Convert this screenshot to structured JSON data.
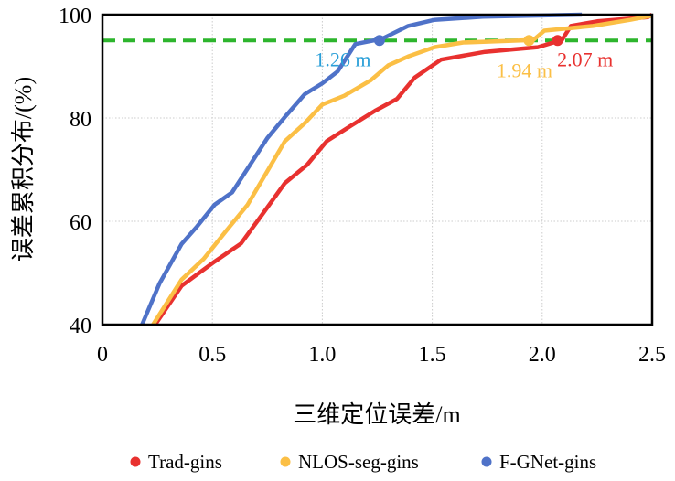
{
  "chart_data": {
    "type": "line",
    "title": "",
    "xlabel": "三维定位误差/m",
    "ylabel": "误差累积分布/(%)",
    "xlim": [
      0,
      2.5
    ],
    "ylim": [
      40,
      100
    ],
    "xticks": [
      "0",
      "0.5",
      "1.0",
      "1.5",
      "2.0",
      "2.5"
    ],
    "xtick_values": [
      0,
      0.5,
      1.0,
      1.5,
      2.0,
      2.5
    ],
    "yticks": [
      "40",
      "60",
      "80",
      "100"
    ],
    "ytick_values": [
      40,
      60,
      80,
      100
    ],
    "grid": true,
    "legend_position": "bottom",
    "threshold": {
      "y": 95,
      "color": "#2db52d",
      "style": "dashed"
    },
    "series": [
      {
        "name": "Trad-gins",
        "color": "#e8312f",
        "x": [
          0.24,
          0.36,
          0.51,
          0.63,
          0.73,
          0.83,
          0.93,
          1.02,
          1.13,
          1.24,
          1.34,
          1.42,
          1.54,
          1.74,
          1.98,
          2.09,
          2.13,
          2.25,
          2.48,
          2.5
        ],
        "y": [
          40,
          47.5,
          52.2,
          55.7,
          61.5,
          67.4,
          70.9,
          75.5,
          78.5,
          81.4,
          83.7,
          87.8,
          91.3,
          92.8,
          93.7,
          95.1,
          97.8,
          98.7,
          99.5,
          100
        ],
        "marker": {
          "x": 2.07,
          "y": 95,
          "label": "2.07 m"
        }
      },
      {
        "name": "NLOS-seg-gins",
        "color": "#fbbf45",
        "x": [
          0.23,
          0.36,
          0.46,
          0.56,
          0.66,
          0.75,
          0.83,
          0.92,
          1.0,
          1.1,
          1.22,
          1.3,
          1.39,
          1.51,
          1.64,
          1.96,
          2.01,
          2.23,
          2.4,
          2.5
        ],
        "y": [
          40,
          48.7,
          52.7,
          58,
          63.2,
          69.7,
          75.5,
          79,
          82.6,
          84.3,
          87.3,
          90.2,
          91.9,
          93.7,
          94.6,
          95.1,
          96.9,
          97.8,
          99,
          99.8
        ],
        "marker": {
          "x": 1.94,
          "y": 95,
          "label": "1.94 m"
        }
      },
      {
        "name": "F-GNet-gins",
        "color": "#4f72c8",
        "x": [
          0.18,
          0.26,
          0.36,
          0.43,
          0.51,
          0.59,
          0.68,
          0.75,
          0.83,
          0.92,
          1.0,
          1.07,
          1.15,
          1.27,
          1.39,
          1.51,
          1.73,
          2.18
        ],
        "y": [
          40,
          48,
          55.6,
          59,
          63.2,
          65.6,
          71.5,
          76.1,
          80.2,
          84.6,
          86.7,
          89,
          94.3,
          95.3,
          97.8,
          99,
          99.6,
          100
        ],
        "marker": {
          "x": 1.26,
          "y": 95,
          "label": "1.26 m"
        }
      }
    ],
    "annotation_colors": {
      "1.26 m": "#2a9fd8",
      "1.94 m": "#fbbf45",
      "2.07 m": "#e8312f"
    }
  }
}
